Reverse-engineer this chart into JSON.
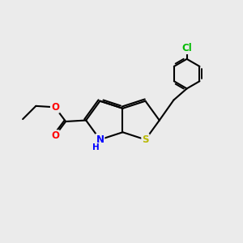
{
  "bg_color": "#EBEBEB",
  "bond_color": "#000000",
  "bond_width": 1.5,
  "atom_colors": {
    "S": "#B8B800",
    "N": "#0000FF",
    "O": "#FF0000",
    "Cl": "#00BB00",
    "C": "#000000"
  },
  "font_size_atom": 8.5,
  "font_size_H": 7.5
}
